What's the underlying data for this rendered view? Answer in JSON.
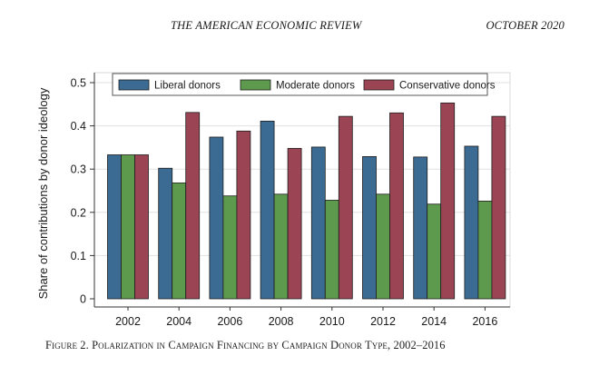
{
  "header": {
    "journal_title": "THE AMERICAN ECONOMIC REVIEW",
    "issue_date": "OCTOBER 2020"
  },
  "caption": {
    "figure_label": "Figure 2.",
    "text": "Polarization in Campaign Financing by Campaign Donor Type, 2002–2016"
  },
  "chart_data": {
    "type": "bar",
    "title": "",
    "xlabel": "",
    "ylabel": "Share of contributions by donor ideology",
    "ylim": [
      0,
      0.5
    ],
    "yticks": [
      0,
      0.1,
      0.2,
      0.3,
      0.4,
      0.5
    ],
    "ytick_labels": [
      "0",
      "0.1",
      "0.2",
      "0.3",
      "0.4",
      "0.5"
    ],
    "categories": [
      "2002",
      "2004",
      "2006",
      "2008",
      "2010",
      "2012",
      "2014",
      "2016"
    ],
    "series": [
      {
        "name": "Liberal donors",
        "color": "#3b6a93",
        "values": [
          0.333,
          0.302,
          0.374,
          0.411,
          0.351,
          0.329,
          0.328,
          0.353
        ]
      },
      {
        "name": "Moderate donors",
        "color": "#5e9a4d",
        "values": [
          0.333,
          0.268,
          0.238,
          0.242,
          0.228,
          0.242,
          0.219,
          0.226
        ]
      },
      {
        "name": "Conservative donors",
        "color": "#9a4454",
        "values": [
          0.333,
          0.431,
          0.388,
          0.348,
          0.422,
          0.43,
          0.453,
          0.422
        ]
      }
    ],
    "grid": true,
    "legend_position": "top"
  }
}
